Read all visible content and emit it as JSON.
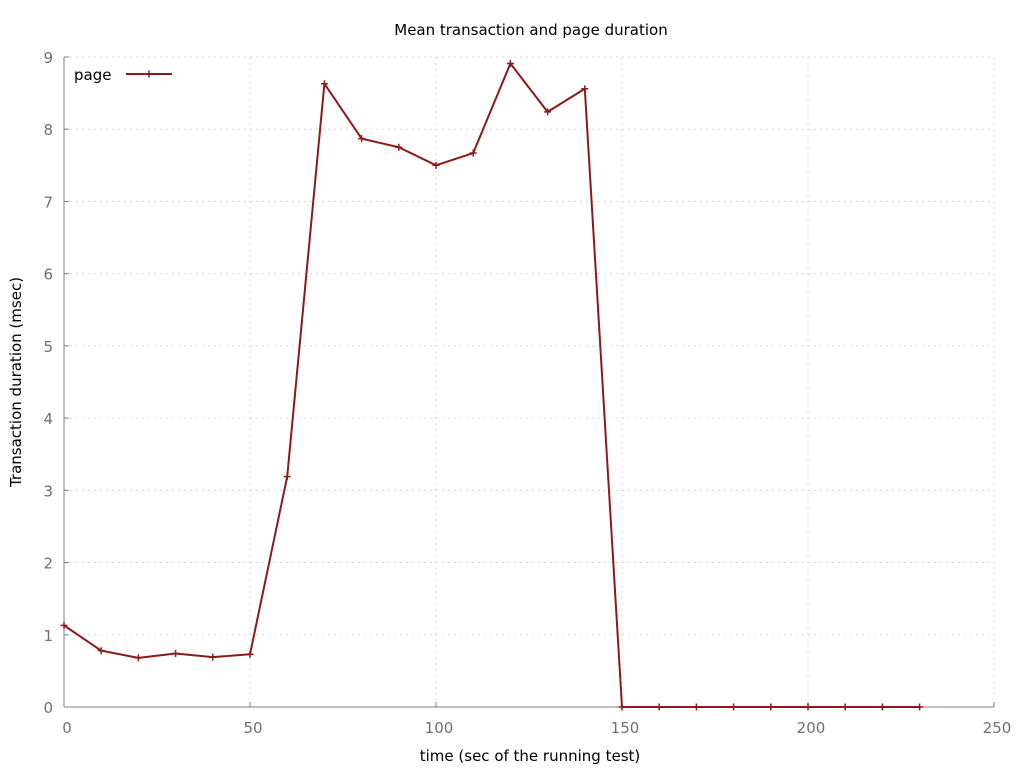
{
  "chart_data": {
    "type": "line",
    "title": "Mean transaction and page duration",
    "xlabel": "time (sec of the running test)",
    "ylabel": "Transaction duration (msec)",
    "xlim": [
      0,
      250
    ],
    "ylim": [
      0,
      9
    ],
    "x_ticks": [
      0,
      50,
      100,
      150,
      200,
      250
    ],
    "y_ticks": [
      0,
      1,
      2,
      3,
      4,
      5,
      6,
      7,
      8,
      9
    ],
    "grid": true,
    "legend": {
      "position": "top-left"
    },
    "series": [
      {
        "name": "page",
        "color": "#8b1a1a",
        "marker": "plus",
        "x": [
          0,
          10,
          20,
          30,
          40,
          50,
          60,
          70,
          80,
          90,
          100,
          110,
          120,
          130,
          140,
          150,
          160,
          170,
          180,
          190,
          200,
          210,
          220,
          230
        ],
        "y": [
          1.13,
          0.78,
          0.68,
          0.74,
          0.69,
          0.73,
          3.19,
          8.63,
          7.87,
          7.75,
          7.5,
          7.67,
          8.91,
          8.24,
          8.56,
          0.0,
          0.0,
          0.0,
          0.0,
          0.0,
          0.0,
          0.0,
          0.0,
          0.0
        ]
      }
    ]
  }
}
